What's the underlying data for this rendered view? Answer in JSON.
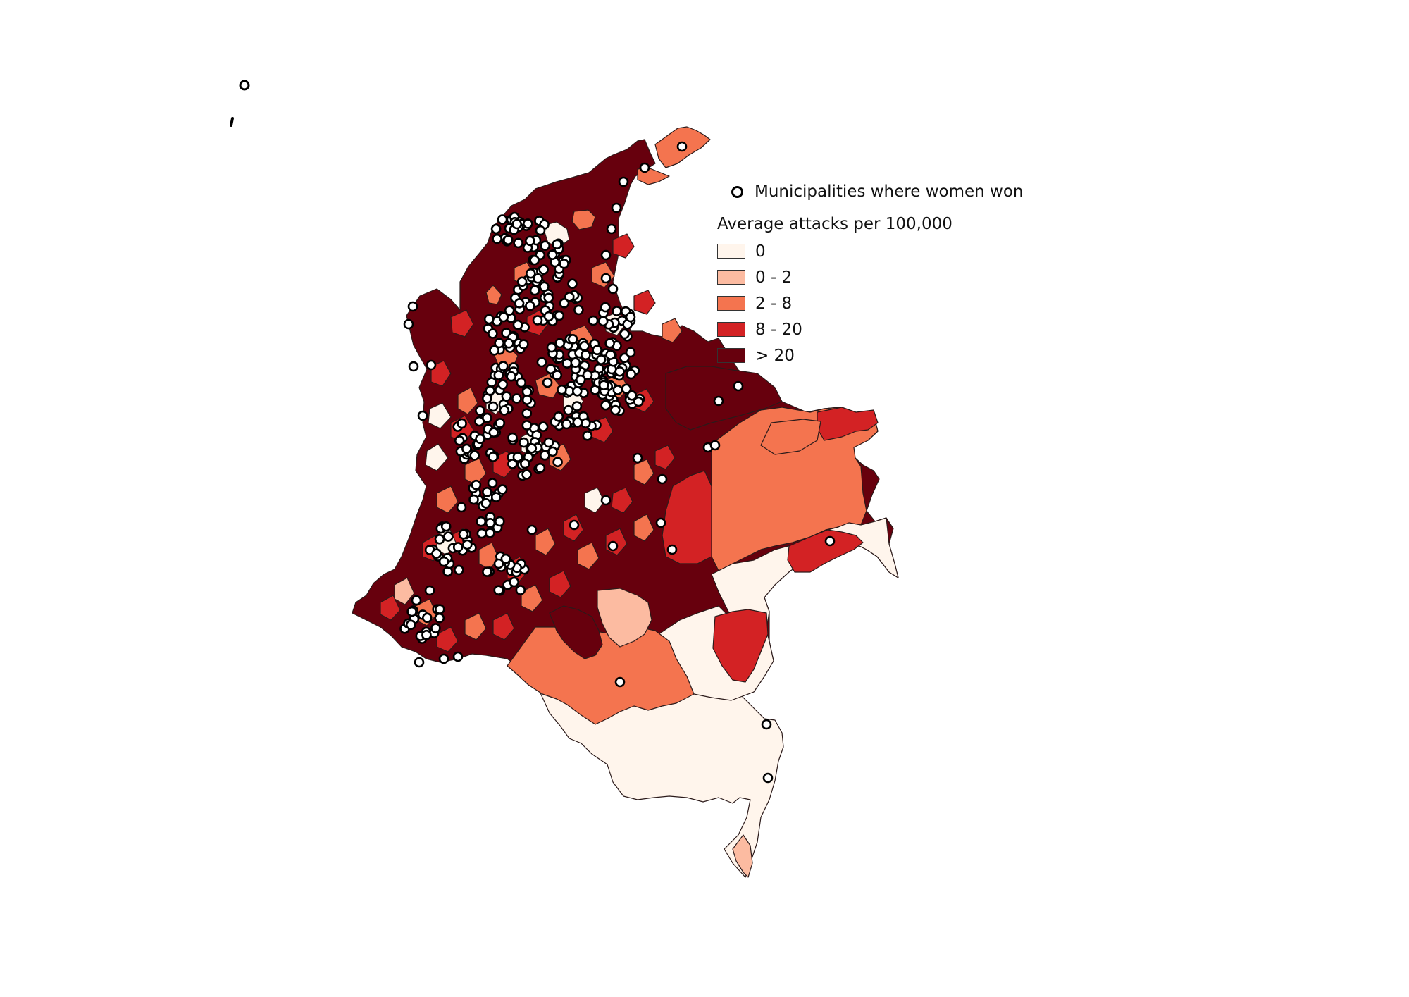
{
  "legend": {
    "marker_label": "Municipalities where women won",
    "title": "Average attacks per 100,000",
    "classes": [
      {
        "label": "0",
        "color": "#fff5ec"
      },
      {
        "label": "0 - 2",
        "color": "#fcbba1"
      },
      {
        "label": "2 - 8",
        "color": "#f4744f"
      },
      {
        "label": "8 - 20",
        "color": "#d32224"
      },
      {
        "label": "> 20",
        "color": "#67000d"
      }
    ]
  },
  "colors": {
    "zero": "#fff5ec",
    "low": "#fcbba1",
    "mid": "#f4744f",
    "high": "#d32224",
    "very_high": "#67000d",
    "outline": "#2b1a1a",
    "marker_fill": "#ffffff",
    "marker_stroke": "#000000"
  }
}
